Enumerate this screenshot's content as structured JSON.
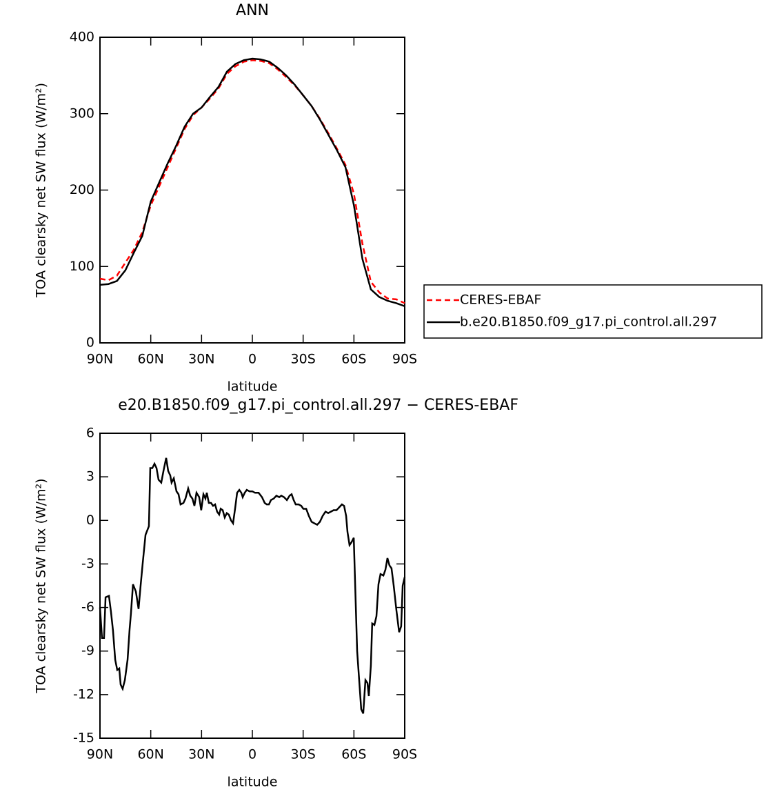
{
  "chart_data": [
    {
      "type": "line",
      "title": "ANN",
      "xlabel": "latitude",
      "ylabel": "TOA clearsky net SW flux (W/m²)",
      "x": [
        90,
        85,
        80,
        75,
        70,
        65,
        60,
        55,
        50,
        45,
        40,
        35,
        30,
        25,
        20,
        15,
        10,
        5,
        0,
        -5,
        -10,
        -15,
        -20,
        -25,
        -30,
        -35,
        -40,
        -45,
        -50,
        -55,
        -60,
        -65,
        -70,
        -75,
        -80,
        -85,
        -90
      ],
      "series": [
        {
          "name": "CERES-EBAF",
          "color": "#ff0000",
          "style": "dashed",
          "values": [
            84,
            82,
            88,
            105,
            122,
            145,
            180,
            205,
            230,
            255,
            280,
            298,
            308,
            320,
            333,
            352,
            362,
            368,
            370,
            369,
            366,
            358,
            348,
            337,
            324,
            310,
            293,
            274,
            254,
            233,
            195,
            130,
            80,
            66,
            58,
            57,
            52
          ]
        },
        {
          "name": "b.e20.B1850.f09_g17.pi_control.all.297",
          "color": "#000000",
          "style": "solid",
          "values": [
            76,
            77,
            81,
            95,
            118,
            140,
            185,
            210,
            235,
            258,
            283,
            300,
            308,
            322,
            335,
            355,
            365,
            370,
            372,
            371,
            368,
            360,
            350,
            338,
            324,
            310,
            292,
            272,
            252,
            230,
            180,
            110,
            70,
            60,
            55,
            52,
            48
          ]
        }
      ],
      "xlim": [
        90,
        -90
      ],
      "xticks": [
        {
          "value": 90,
          "label": "90N"
        },
        {
          "value": 60,
          "label": "60N"
        },
        {
          "value": 30,
          "label": "30N"
        },
        0,
        {
          "value": -30,
          "label": "30S"
        },
        {
          "value": -60,
          "label": "60S"
        },
        {
          "value": -90,
          "label": "90S"
        }
      ],
      "ylim": [
        0,
        400
      ],
      "yticks": [
        0,
        100,
        200,
        300,
        400
      ],
      "legend": "right"
    },
    {
      "type": "line",
      "title": "e20.B1850.f09_g17.pi_control.all.297 − CERES-EBAF",
      "xlabel": "latitude",
      "ylabel": "TOA clearsky net SW flux (W/m²)",
      "x": [
        90,
        88.8,
        87.6,
        86.7,
        84.7,
        83.5,
        82.3,
        81.0,
        79.8,
        78.6,
        77.8,
        76.6,
        75.3,
        73.7,
        72.5,
        71.7,
        70.5,
        68.8,
        67.2,
        66.0,
        64.8,
        63.1,
        61.1,
        60.3,
        59.1,
        57.8,
        56.6,
        55.4,
        53.8,
        52.5,
        50.9,
        49.7,
        48.5,
        47.7,
        46.4,
        44.8,
        43.6,
        42.4,
        40.7,
        39.5,
        37.9,
        36.7,
        35.4,
        34.2,
        33.0,
        31.4,
        30.2,
        28.9,
        27.7,
        26.9,
        25.7,
        24.4,
        23.2,
        22.0,
        20.8,
        19.6,
        18.7,
        17.5,
        16.3,
        15.1,
        13.9,
        12.6,
        11.4,
        10.2,
        9.0,
        7.7,
        6.5,
        5.7,
        4.5,
        3.3,
        1.6,
        0,
        -1.6,
        -3.7,
        -5.7,
        -7.3,
        -8.5,
        -9.8,
        -11.0,
        -12.6,
        -14.2,
        -15.9,
        -17.1,
        -18.7,
        -20.4,
        -22.0,
        -23.2,
        -24.4,
        -25.6,
        -27.3,
        -28.9,
        -30.1,
        -31.8,
        -33.4,
        -35.0,
        -36.6,
        -38.3,
        -39.9,
        -41.5,
        -43.2,
        -44.8,
        -46.4,
        -48.0,
        -49.7,
        -51.3,
        -52.9,
        -54.2,
        -55.4,
        -56.2,
        -57.4,
        -58.6,
        -59.9,
        -61.9,
        -64.3,
        -65.5,
        -66.8,
        -68.0,
        -68.8,
        -70.0,
        -70.8,
        -72.1,
        -73.3,
        -74.5,
        -75.7,
        -77.4,
        -78.6,
        -79.8,
        -81.0,
        -82.2,
        -83.5,
        -85.1,
        -86.7,
        -87.9,
        -88.8,
        -90
      ],
      "values": [
        -6,
        -8.1,
        -8.1,
        -5.3,
        -5.2,
        -6.3,
        -7.6,
        -9.6,
        -10.3,
        -10.2,
        -11.3,
        -11.6,
        -11,
        -9.6,
        -7.5,
        -6.4,
        -4.4,
        -4.9,
        -6.1,
        -4.5,
        -3,
        -1,
        -0.4,
        3.6,
        3.6,
        3.9,
        3.6,
        2.8,
        2.6,
        3.4,
        4.3,
        3.4,
        3.1,
        2.6,
        2.9,
        2,
        1.8,
        1.1,
        1.2,
        1.5,
        2.2,
        1.7,
        1.5,
        1.0,
        1.9,
        1.6,
        0.7,
        1.8,
        1.5,
        1.9,
        1.2,
        1.2,
        1.0,
        1.1,
        0.6,
        0.4,
        0.8,
        0.7,
        0.2,
        0.5,
        0.4,
        0.0,
        -0.2,
        0.8,
        1.9,
        2.1,
        1.9,
        1.6,
        1.9,
        2.1,
        2.0,
        2.0,
        1.9,
        1.9,
        1.6,
        1.2,
        1.1,
        1.1,
        1.4,
        1.5,
        1.7,
        1.6,
        1.7,
        1.6,
        1.4,
        1.7,
        1.8,
        1.4,
        1.1,
        1.1,
        1.0,
        0.8,
        0.8,
        0.3,
        -0.1,
        -0.2,
        -0.3,
        -0.1,
        0.3,
        0.6,
        0.5,
        0.6,
        0.7,
        0.7,
        0.9,
        1.1,
        1.0,
        0.3,
        -0.8,
        -1.7,
        -1.5,
        -1.2,
        -9,
        -13.0,
        -13.3,
        -11,
        -11.2,
        -12.1,
        -10,
        -7.1,
        -7.2,
        -6.6,
        -4.4,
        -3.7,
        -3.8,
        -3.4,
        -2.6,
        -3.1,
        -3.3,
        -4.5,
        -6.2,
        -7.7,
        -7.3,
        -4.5,
        -3.9
      ],
      "color": "#000000",
      "xlim": [
        90,
        -90
      ],
      "xticks": [
        {
          "value": 90,
          "label": "90N"
        },
        {
          "value": 60,
          "label": "60N"
        },
        {
          "value": 30,
          "label": "30N"
        },
        0,
        {
          "value": -30,
          "label": "30S"
        },
        {
          "value": -60,
          "label": "60S"
        },
        {
          "value": -90,
          "label": "90S"
        }
      ],
      "ylim": [
        -15,
        6
      ],
      "yticks": [
        -15,
        -12,
        -9,
        -6,
        -3,
        0,
        3,
        6
      ]
    }
  ]
}
